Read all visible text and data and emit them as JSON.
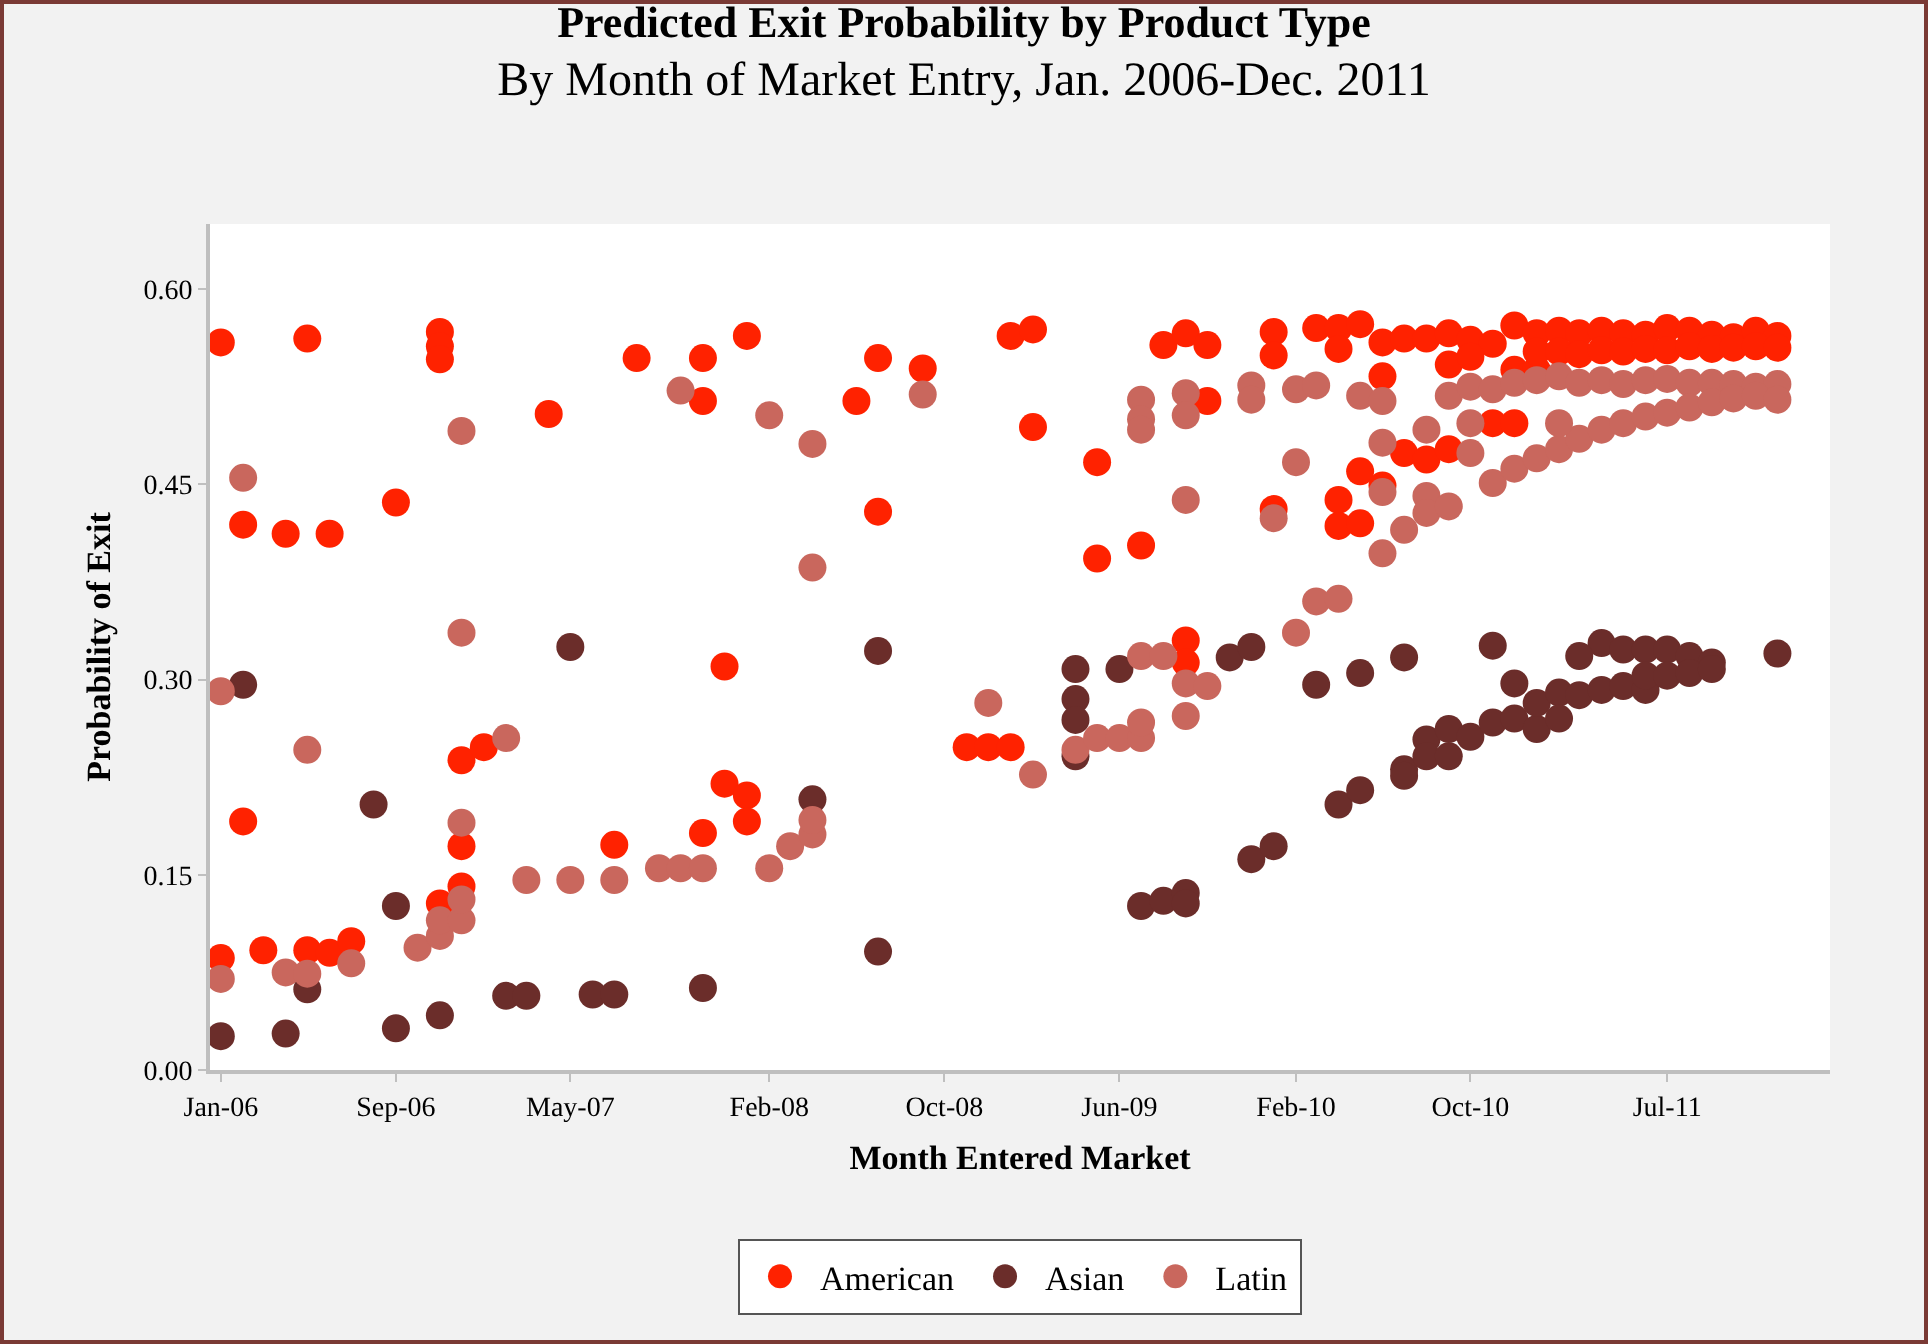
{
  "chart_data": {
    "type": "scatter",
    "title": "Predicted Exit Probability by Product Type",
    "subtitle": "By Month of Market Entry, Jan. 2006-Dec. 2011",
    "xlabel": "Month Entered Market",
    "ylabel": "Probability of Exit",
    "marker": "circle",
    "legend": "bottom",
    "xlim": [
      "2005-12-17",
      "2012-02-12"
    ],
    "xticks": [
      {
        "value": "2006-01-01",
        "label": "Jan-06"
      },
      {
        "value": "2006-09-01",
        "label": "Sep-06"
      },
      {
        "value": "2007-05-01",
        "label": "May-07"
      },
      {
        "value": "2008-02-01",
        "label": "Feb-08"
      },
      {
        "value": "2008-10-01",
        "label": "Oct-08"
      },
      {
        "value": "2009-06-01",
        "label": "Jun-09"
      },
      {
        "value": "2010-02-01",
        "label": "Feb-10"
      },
      {
        "value": "2010-10-01",
        "label": "Oct-10"
      },
      {
        "value": "2011-07-01",
        "label": "Jul-11"
      }
    ],
    "ylim": [
      0,
      0.65
    ],
    "yticks": [
      {
        "value": 0,
        "label": "0.00"
      },
      {
        "value": 0.15,
        "label": "0.15"
      },
      {
        "value": 0.3,
        "label": "0.30"
      },
      {
        "value": 0.45,
        "label": "0.45"
      },
      {
        "value": 0.6,
        "label": "0.60"
      }
    ],
    "series": [
      {
        "name": "American",
        "color": "#ff2200",
        "x": [
          "2006-01",
          "2006-05",
          "2006-11",
          "2006-11",
          "2006-11",
          "2007-04",
          "2006-02",
          "2006-04",
          "2006-06",
          "2006-09",
          "2006-02",
          "2006-01",
          "2006-03",
          "2006-05",
          "2006-06",
          "2006-07",
          "2006-11",
          "2006-12",
          "2007-01",
          "2006-12",
          "2006-12",
          "2007-08",
          "2007-11",
          "2007-11",
          "2008-01",
          "2008-07",
          "2008-09",
          "2008-06",
          "2009-01",
          "2009-02",
          "2009-02",
          "2008-07",
          "2007-12",
          "2007-12",
          "2008-01",
          "2008-01",
          "2007-11",
          "2007-07",
          "2008-11",
          "2008-12",
          "2009-01",
          "2009-08",
          "2009-09",
          "2009-10",
          "2010-01",
          "2010-01",
          "2010-03",
          "2010-04",
          "2010-05",
          "2010-04",
          "2010-06",
          "2010-07",
          "2010-08",
          "2010-06",
          "2009-10",
          "2009-05",
          "2009-05",
          "2009-07",
          "2009-09",
          "2009-09",
          "2010-01",
          "2010-05",
          "2010-04",
          "2010-04",
          "2010-05",
          "2010-06",
          "2010-07",
          "2010-08",
          "2010-09",
          "2010-12",
          "2011-01",
          "2010-11",
          "2010-12",
          "2010-09",
          "2010-09",
          "2010-10",
          "2010-11",
          "2010-12",
          "2011-01",
          "2011-02",
          "2011-03",
          "2011-04",
          "2011-05",
          "2011-06",
          "2011-07",
          "2011-08",
          "2011-09",
          "2011-10",
          "2011-11",
          "2011-12",
          "2010-10",
          "2011-01",
          "2011-02",
          "2011-03",
          "2011-04",
          "2011-05",
          "2011-06",
          "2011-07",
          "2011-08",
          "2011-09",
          "2011-10",
          "2011-11",
          "2011-12"
        ],
        "values": [
          0.559,
          0.562,
          0.567,
          0.556,
          0.546,
          0.504,
          0.419,
          0.412,
          0.412,
          0.436,
          0.191,
          0.086,
          0.092,
          0.092,
          0.09,
          0.099,
          0.128,
          0.238,
          0.248,
          0.172,
          0.141,
          0.547,
          0.547,
          0.514,
          0.564,
          0.547,
          0.539,
          0.514,
          0.564,
          0.569,
          0.494,
          0.429,
          0.31,
          0.22,
          0.211,
          0.191,
          0.182,
          0.173,
          0.248,
          0.248,
          0.248,
          0.557,
          0.566,
          0.557,
          0.567,
          0.549,
          0.57,
          0.57,
          0.573,
          0.554,
          0.559,
          0.562,
          0.562,
          0.533,
          0.514,
          0.467,
          0.393,
          0.403,
          0.33,
          0.313,
          0.431,
          0.46,
          0.438,
          0.418,
          0.42,
          0.449,
          0.474,
          0.469,
          0.542,
          0.538,
          0.538,
          0.497,
          0.497,
          0.477,
          0.566,
          0.561,
          0.558,
          0.572,
          0.566,
          0.568,
          0.566,
          0.568,
          0.566,
          0.565,
          0.57,
          0.568,
          0.565,
          0.563,
          0.568,
          0.564,
          0.548,
          0.552,
          0.552,
          0.55,
          0.553,
          0.552,
          0.554,
          0.553,
          0.556,
          0.554,
          0.555,
          0.556,
          0.555
        ]
      },
      {
        "name": "Asian",
        "color": "#6b2d2a",
        "x": [
          "2006-02",
          "2007-05",
          "2006-08",
          "2006-09",
          "2006-05",
          "2006-01",
          "2006-04",
          "2006-09",
          "2006-11",
          "2007-02",
          "2007-03",
          "2007-06",
          "2007-07",
          "2007-11",
          "2008-07",
          "2008-04",
          "2008-07",
          "2009-04",
          "2009-04",
          "2009-04",
          "2009-04",
          "2009-06",
          "2009-11",
          "2009-12",
          "2010-03",
          "2010-05",
          "2010-07",
          "2009-07",
          "2009-08",
          "2009-09",
          "2009-09",
          "2009-12",
          "2010-01",
          "2010-04",
          "2010-05",
          "2010-07",
          "2010-07",
          "2010-08",
          "2010-08",
          "2010-11",
          "2011-12",
          "2011-04",
          "2011-03",
          "2011-05",
          "2011-06",
          "2011-07",
          "2011-08",
          "2011-09",
          "2010-09",
          "2010-09",
          "2010-10",
          "2010-11",
          "2010-12",
          "2010-12",
          "2011-01",
          "2011-01",
          "2011-02",
          "2011-03",
          "2011-04",
          "2011-05",
          "2011-06",
          "2011-06",
          "2011-07",
          "2011-08",
          "2011-09",
          "2011-02"
        ],
        "values": [
          0.296,
          0.325,
          0.204,
          0.126,
          0.062,
          0.026,
          0.028,
          0.032,
          0.042,
          0.057,
          0.057,
          0.058,
          0.058,
          0.063,
          0.322,
          0.208,
          0.091,
          0.308,
          0.285,
          0.269,
          0.241,
          0.308,
          0.317,
          0.325,
          0.296,
          0.305,
          0.317,
          0.126,
          0.13,
          0.136,
          0.128,
          0.162,
          0.172,
          0.204,
          0.215,
          0.231,
          0.226,
          0.254,
          0.241,
          0.326,
          0.32,
          0.328,
          0.318,
          0.323,
          0.323,
          0.323,
          0.318,
          0.313,
          0.262,
          0.241,
          0.256,
          0.267,
          0.27,
          0.297,
          0.262,
          0.282,
          0.29,
          0.288,
          0.292,
          0.295,
          0.292,
          0.303,
          0.303,
          0.305,
          0.308,
          0.27
        ]
      },
      {
        "name": "Latin",
        "color": "#c9675d",
        "x": [
          "2006-02",
          "2006-01",
          "2006-05",
          "2006-12",
          "2006-12",
          "2007-02",
          "2006-12",
          "2007-03",
          "2007-05",
          "2006-01",
          "2006-04",
          "2006-05",
          "2006-07",
          "2006-10",
          "2006-11",
          "2006-11",
          "2006-12",
          "2006-12",
          "2007-10",
          "2008-02",
          "2008-04",
          "2008-09",
          "2008-04",
          "2008-12",
          "2009-02",
          "2007-07",
          "2007-09",
          "2007-10",
          "2007-11",
          "2008-02",
          "2008-03",
          "2008-04",
          "2008-04",
          "2009-07",
          "2009-07",
          "2009-07",
          "2009-09",
          "2009-09",
          "2009-12",
          "2009-12",
          "2010-02",
          "2010-03",
          "2010-05",
          "2010-06",
          "2009-09",
          "2010-02",
          "2010-01",
          "2010-06",
          "2010-06",
          "2010-07",
          "2010-06",
          "2010-08",
          "2010-08",
          "2010-08",
          "2010-03",
          "2010-04",
          "2010-02",
          "2009-07",
          "2009-08",
          "2009-09",
          "2009-10",
          "2009-09",
          "2009-04",
          "2009-05",
          "2009-06",
          "2009-07",
          "2009-07",
          "2010-09",
          "2010-10",
          "2010-11",
          "2010-12",
          "2011-01",
          "2011-02",
          "2011-03",
          "2011-04",
          "2011-05",
          "2011-06",
          "2011-07",
          "2011-08",
          "2011-09",
          "2011-10",
          "2011-11",
          "2011-12",
          "2010-11",
          "2010-12",
          "2011-01",
          "2011-02",
          "2011-03",
          "2011-04",
          "2011-05",
          "2011-06",
          "2011-07",
          "2011-08",
          "2011-09",
          "2011-10",
          "2011-11",
          "2011-12",
          "2011-02",
          "2010-10",
          "2010-10",
          "2010-09"
        ],
        "values": [
          0.455,
          0.291,
          0.246,
          0.491,
          0.336,
          0.255,
          0.19,
          0.146,
          0.146,
          0.07,
          0.075,
          0.074,
          0.082,
          0.094,
          0.103,
          0.115,
          0.115,
          0.131,
          0.522,
          0.503,
          0.481,
          0.519,
          0.386,
          0.282,
          0.227,
          0.146,
          0.155,
          0.155,
          0.155,
          0.155,
          0.172,
          0.181,
          0.192,
          0.515,
          0.5,
          0.492,
          0.52,
          0.503,
          0.526,
          0.515,
          0.523,
          0.526,
          0.518,
          0.514,
          0.438,
          0.467,
          0.424,
          0.482,
          0.444,
          0.415,
          0.397,
          0.492,
          0.441,
          0.428,
          0.36,
          0.362,
          0.336,
          0.318,
          0.318,
          0.297,
          0.295,
          0.272,
          0.246,
          0.255,
          0.255,
          0.255,
          0.267,
          0.518,
          0.525,
          0.523,
          0.528,
          0.53,
          0.533,
          0.528,
          0.53,
          0.527,
          0.53,
          0.531,
          0.528,
          0.528,
          0.527,
          0.525,
          0.527,
          0.451,
          0.462,
          0.47,
          0.477,
          0.485,
          0.492,
          0.497,
          0.502,
          0.505,
          0.509,
          0.513,
          0.516,
          0.518,
          0.515,
          0.497,
          0.497,
          0.474,
          0.433
        ]
      }
    ]
  }
}
